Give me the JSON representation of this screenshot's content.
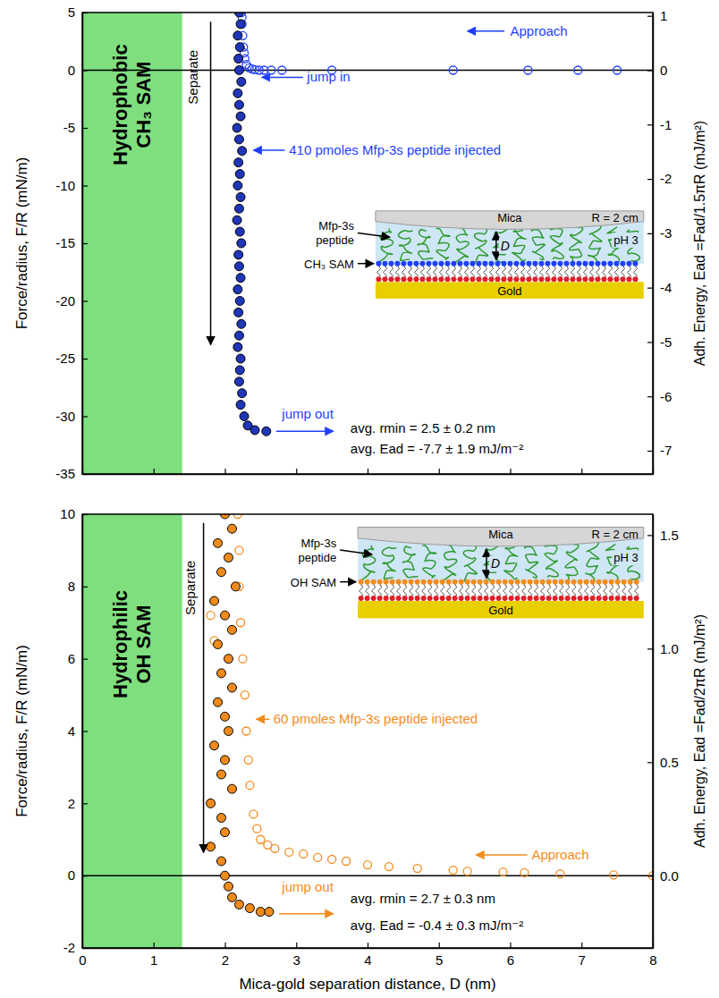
{
  "chart_data": [
    {
      "type": "scatter",
      "ylabel": "Force/radius, F/R (mN/m)",
      "y2label": "Adh. Energy, Ead =Fad/1.5πR (mJ/m²)",
      "xlim": [
        0,
        8
      ],
      "xticks": [
        0,
        1,
        2,
        3,
        4,
        5,
        6,
        7,
        8
      ],
      "ylim": [
        -35,
        5
      ],
      "yticks": [
        -35,
        -30,
        -25,
        -20,
        -15,
        -10,
        -5,
        0,
        5
      ],
      "y2lim": [
        -7.427,
        1.061
      ],
      "y2ticks": [
        -7,
        -6,
        -5,
        -4,
        -3,
        -2,
        -1,
        0,
        1
      ],
      "tick_labels": "y",
      "hline": 0,
      "shade": {
        "x": [
          0,
          1.4
        ],
        "color": "#7fdf7f",
        "label": [
          "Hydrophobic",
          "CH₃ SAM"
        ]
      },
      "series": [
        {
          "name": "Approach",
          "color": "#1f3fff",
          "marker": "open-circle",
          "x": [
            7.5,
            6.95,
            6.25,
            5.2,
            3.5,
            2.8,
            2.65,
            2.55,
            2.48,
            2.42,
            2.38,
            2.34,
            2.3,
            2.28,
            2.27,
            2.26,
            2.25,
            2.24,
            2.24,
            2.23
          ],
          "values": [
            0,
            0,
            0,
            0,
            0,
            0,
            0,
            0,
            0,
            0.05,
            0.1,
            0.2,
            0.5,
            1,
            1.5,
            2,
            3,
            4,
            4.6,
            5
          ]
        },
        {
          "name": "Separate",
          "color": "#2036b8",
          "marker": "filled-circle",
          "x": [
            2.2,
            2.22,
            2.18,
            2.21,
            2.19,
            2.2,
            2.23,
            2.18,
            2.2,
            2.22,
            2.17,
            2.2,
            2.24,
            2.19,
            2.21,
            2.18,
            2.22,
            2.2,
            2.17,
            2.21,
            2.23,
            2.19,
            2.2,
            2.22,
            2.18,
            2.21,
            2.19,
            2.23,
            2.2,
            2.18,
            2.22,
            2.21,
            2.2,
            2.24,
            2.22,
            2.27,
            2.32,
            2.42,
            2.58
          ],
          "values": [
            5,
            4,
            3,
            2,
            1,
            0,
            -1,
            -2,
            -3,
            -4,
            -5,
            -6,
            -7,
            -8,
            -9,
            -10,
            -11,
            -12,
            -13,
            -14,
            -15,
            -16,
            -17,
            -18,
            -19,
            -20,
            -21,
            -22,
            -23,
            -24,
            -25,
            -26,
            -27,
            -28,
            -29,
            -30,
            -30.8,
            -31.2,
            -31.3
          ]
        }
      ],
      "annotations": {
        "jump_in": "jump in",
        "injected": "410 pmoles Mfp-3s peptide injected",
        "jump_out": "jump out",
        "stats": [
          "avg. rmin = 2.5 ± 0.2 nm",
          "avg. Ead = -7.7 ± 1.9 mJ/m⁻²"
        ]
      },
      "inset": {
        "surface": "Mica",
        "radius": "R = 2 cm",
        "peptide": "Mfp-3s peptide",
        "ph": "pH 3",
        "gap": "D",
        "sam": "CH₃ SAM",
        "substrate": "Gold"
      }
    },
    {
      "type": "scatter",
      "xlabel": "Mica-gold separation distance, D (nm)",
      "ylabel": "Force/radius, F/R (mN/m)",
      "y2label": "Adh. Energy, Ead =Fad/2πR (mJ/m²)",
      "xlim": [
        0,
        8
      ],
      "xticks": [
        0,
        1,
        2,
        3,
        4,
        5,
        6,
        7,
        8
      ],
      "ylim": [
        -2,
        10
      ],
      "yticks": [
        -2,
        0,
        2,
        4,
        6,
        8,
        10
      ],
      "y2lim": [
        -0.318,
        1.592
      ],
      "y2ticks": [
        {
          "value": 0,
          "label": "0.0"
        },
        {
          "value": 0.5,
          "label": "0.5"
        },
        {
          "value": 1,
          "label": "1.0"
        },
        {
          "value": 1.5,
          "label": "1.5"
        }
      ],
      "hline": 0,
      "shade": {
        "x": [
          0,
          1.4
        ],
        "color": "#7fdf7f",
        "label": [
          "Hydrophilic",
          "OH SAM"
        ]
      },
      "series": [
        {
          "name": "Approach",
          "color": "#f28c1e",
          "marker": "open-circle",
          "x": [
            8,
            7.45,
            6.7,
            6.2,
            5.9,
            5.4,
            5.2,
            4.7,
            4.3,
            4.0,
            3.7,
            3.5,
            3.3,
            3.1,
            2.9,
            2.7,
            2.6,
            2.5,
            2.45,
            2.4,
            2.35,
            2.33,
            2.3,
            2.28,
            2.25,
            2.22,
            2.2,
            2.2,
            2.18,
            1.8,
            1.85
          ],
          "values": [
            0,
            0.02,
            0.05,
            0.08,
            0.1,
            0.12,
            0.15,
            0.2,
            0.25,
            0.3,
            0.4,
            0.45,
            0.5,
            0.6,
            0.65,
            0.75,
            0.85,
            1.0,
            1.3,
            1.7,
            2.5,
            3.2,
            4,
            5,
            6,
            7,
            8,
            9,
            10,
            7.2,
            6.5
          ]
        },
        {
          "name": "Separate",
          "color": "#f08a1a",
          "marker": "filled-circle",
          "x": [
            2.0,
            2.1,
            1.9,
            2.05,
            1.95,
            2.15,
            1.85,
            2.0,
            2.1,
            1.9,
            2.05,
            1.95,
            2.1,
            1.9,
            2.0,
            2.05,
            1.85,
            2.0,
            1.95,
            2.1,
            1.8,
            1.95,
            2.0,
            1.8,
            1.95,
            2.0,
            2.05,
            2.1,
            2.2,
            2.35,
            2.5,
            2.62
          ],
          "values": [
            10,
            9.6,
            9.2,
            8.8,
            8.4,
            8,
            7.6,
            7.2,
            6.8,
            6.4,
            6,
            5.6,
            5.2,
            4.8,
            4.4,
            4,
            3.6,
            3.2,
            2.8,
            2.4,
            2,
            1.6,
            1.2,
            0.8,
            0.4,
            0,
            -0.3,
            -0.6,
            -0.8,
            -0.9,
            -1.0,
            -1.0
          ]
        }
      ],
      "annotations": {
        "injected": "60 pmoles Mfp-3s peptide injected",
        "jump_out": "jump out",
        "stats": [
          "avg. rmin = 2.7 ± 0.3 nm",
          "avg. Ead = -0.4 ± 0.3 mJ/m⁻²"
        ]
      },
      "inset": {
        "surface": "Mica",
        "radius": "R = 2 cm",
        "peptide": "Mfp-3s peptide",
        "ph": "pH 3",
        "gap": "D",
        "sam": "OH SAM",
        "substrate": "Gold"
      }
    }
  ]
}
